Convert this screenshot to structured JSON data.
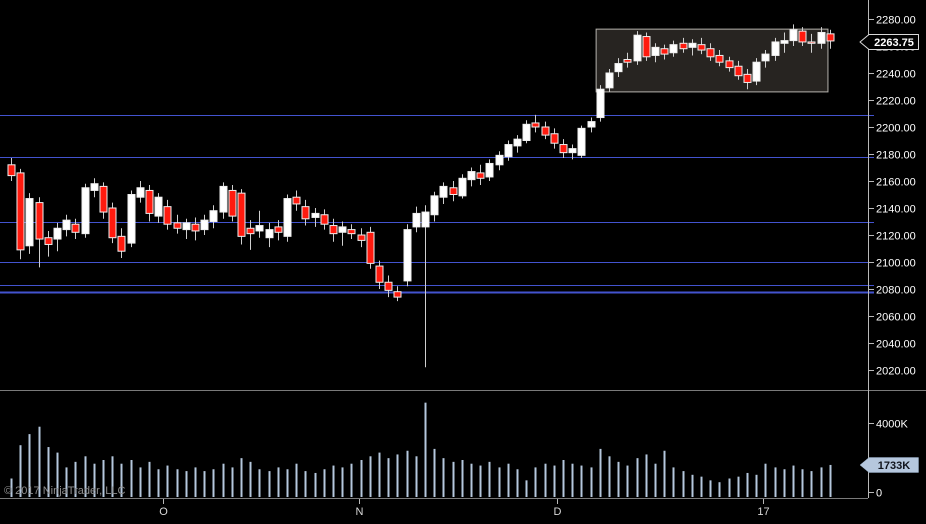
{
  "footer": {
    "copyright": "© 2017 NinjaTrader, LLC"
  },
  "price_axis": {
    "min": 2020,
    "max": 2280,
    "step": 20,
    "last_price": 2263.75,
    "last_price_label": "2263.75",
    "ticks": [
      {
        "value": 2280,
        "label": "2280.00"
      },
      {
        "value": 2260,
        "label": "2260.00"
      },
      {
        "value": 2240,
        "label": "2240.00"
      },
      {
        "value": 2220,
        "label": "2220.00"
      },
      {
        "value": 2200,
        "label": "2200.00"
      },
      {
        "value": 2180,
        "label": "2180.00"
      },
      {
        "value": 2160,
        "label": "2160.00"
      },
      {
        "value": 2140,
        "label": "2140.00"
      },
      {
        "value": 2120,
        "label": "2120.00"
      },
      {
        "value": 2100,
        "label": "2100.00"
      },
      {
        "value": 2080,
        "label": "2080.00"
      },
      {
        "value": 2060,
        "label": "2060.00"
      },
      {
        "value": 2040,
        "label": "2040.00"
      },
      {
        "value": 2020,
        "label": "2020.00"
      }
    ]
  },
  "volume_axis": {
    "unit": "K",
    "last_volume": 1733,
    "last_volume_label": "1733K",
    "ticks": [
      {
        "value": 4000,
        "label": "4000K"
      },
      {
        "value": 0,
        "label": "0"
      }
    ]
  },
  "time_axis": {
    "ticks": [
      {
        "label": "O",
        "index": 16.5
      },
      {
        "label": "N",
        "index": 37.8
      },
      {
        "label": "D",
        "index": 59.4
      },
      {
        "label": "17",
        "index": 81.7
      }
    ]
  },
  "colors": {
    "background": "#000000",
    "up_candle": "#ffffff",
    "down_candle": "#ff1a0e",
    "candle_outline": "#efefef",
    "wick": "#cfcfcf",
    "hline": "#4353cf",
    "volume_bar": "#b5c7dd",
    "axis_line": "#b9b9b9",
    "separator": "#7a7a7a",
    "tick_text": "#ffffff",
    "month_text": "#d9d9d9",
    "box_fill": "rgba(176,166,152,0.22)",
    "box_border": "#b5b2ad",
    "price_badge_bg": "#000000",
    "price_badge_border": "#d9d9d9",
    "price_badge_text": "#ffffff",
    "volume_badge_bg": "#b5c7dd",
    "volume_badge_text": "#10141c"
  },
  "chart_data": {
    "type": "candlestick",
    "panes": [
      "price",
      "volume"
    ],
    "grid": false,
    "legend": "none",
    "price_range": [
      2020,
      2280
    ],
    "volume_range_k": [
      0,
      4000
    ],
    "candles": [
      [
        2172,
        2177,
        2160,
        2164
      ],
      [
        2166,
        2169,
        2102,
        2109
      ],
      [
        2112,
        2151,
        2106,
        2147
      ],
      [
        2144,
        2148,
        2096,
        2117
      ],
      [
        2118,
        2123,
        2104,
        2113
      ],
      [
        2117,
        2129,
        2108,
        2125
      ],
      [
        2124,
        2135,
        2119,
        2131
      ],
      [
        2128,
        2132,
        2117,
        2122
      ],
      [
        2121,
        2158,
        2118,
        2155
      ],
      [
        2153,
        2162,
        2148,
        2158
      ],
      [
        2156,
        2159,
        2132,
        2137
      ],
      [
        2140,
        2144,
        2114,
        2118
      ],
      [
        2119,
        2125,
        2103,
        2108
      ],
      [
        2114,
        2153,
        2111,
        2150
      ],
      [
        2148,
        2160,
        2144,
        2155
      ],
      [
        2153,
        2157,
        2130,
        2136
      ],
      [
        2134,
        2151,
        2129,
        2148
      ],
      [
        2141,
        2146,
        2124,
        2128
      ],
      [
        2129,
        2135,
        2121,
        2125
      ],
      [
        2124,
        2132,
        2117,
        2129
      ],
      [
        2128,
        2133,
        2116,
        2123
      ],
      [
        2124,
        2135,
        2120,
        2131
      ],
      [
        2130,
        2142,
        2125,
        2138
      ],
      [
        2137,
        2159,
        2132,
        2156
      ],
      [
        2153,
        2157,
        2130,
        2134
      ],
      [
        2151,
        2154,
        2113,
        2119
      ],
      [
        2125,
        2131,
        2109,
        2121
      ],
      [
        2123,
        2138,
        2118,
        2127
      ],
      [
        2118,
        2129,
        2111,
        2124
      ],
      [
        2126,
        2131,
        2116,
        2122
      ],
      [
        2119,
        2150,
        2115,
        2147
      ],
      [
        2148,
        2153,
        2138,
        2143
      ],
      [
        2141,
        2146,
        2127,
        2132
      ],
      [
        2133,
        2140,
        2126,
        2136
      ],
      [
        2135,
        2139,
        2124,
        2128
      ],
      [
        2127,
        2132,
        2115,
        2121
      ],
      [
        2122,
        2130,
        2112,
        2126
      ],
      [
        2124,
        2128,
        2117,
        2121
      ],
      [
        2120,
        2125,
        2111,
        2116
      ],
      [
        2122,
        2126,
        2095,
        2099
      ],
      [
        2097,
        2101,
        2080,
        2085
      ],
      [
        2085,
        2090,
        2074,
        2079
      ],
      [
        2078,
        2082,
        2071,
        2074
      ],
      [
        2086,
        2128,
        2082,
        2124
      ],
      [
        2126,
        2141,
        2122,
        2136
      ],
      [
        2126,
        2142,
        2022,
        2137
      ],
      [
        2135,
        2152,
        2130,
        2149
      ],
      [
        2148,
        2159,
        2143,
        2156
      ],
      [
        2155,
        2160,
        2145,
        2150
      ],
      [
        2149,
        2165,
        2147,
        2162
      ],
      [
        2161,
        2170,
        2156,
        2167
      ],
      [
        2166,
        2172,
        2157,
        2162
      ],
      [
        2163,
        2176,
        2160,
        2173
      ],
      [
        2172,
        2182,
        2168,
        2179
      ],
      [
        2178,
        2190,
        2175,
        2187
      ],
      [
        2186,
        2194,
        2181,
        2191
      ],
      [
        2190,
        2205,
        2188,
        2202
      ],
      [
        2203,
        2209,
        2196,
        2200
      ],
      [
        2200,
        2204,
        2191,
        2194
      ],
      [
        2195,
        2199,
        2184,
        2188
      ],
      [
        2187,
        2191,
        2177,
        2181
      ],
      [
        2181,
        2187,
        2176,
        2184
      ],
      [
        2179,
        2201,
        2177,
        2199
      ],
      [
        2200,
        2207,
        2196,
        2204
      ],
      [
        2207,
        2231,
        2204,
        2228
      ],
      [
        2229,
        2243,
        2226,
        2240
      ],
      [
        2241,
        2251,
        2237,
        2247
      ],
      [
        2250,
        2255,
        2244,
        2248
      ],
      [
        2249,
        2271,
        2246,
        2268
      ],
      [
        2267,
        2270,
        2249,
        2252
      ],
      [
        2253,
        2262,
        2248,
        2259
      ],
      [
        2258,
        2261,
        2250,
        2254
      ],
      [
        2255,
        2264,
        2252,
        2261
      ],
      [
        2262,
        2266,
        2255,
        2258
      ],
      [
        2259,
        2265,
        2253,
        2262
      ],
      [
        2261,
        2266,
        2254,
        2257
      ],
      [
        2258,
        2262,
        2249,
        2252
      ],
      [
        2253,
        2257,
        2245,
        2248
      ],
      [
        2249,
        2252,
        2241,
        2244
      ],
      [
        2245,
        2249,
        2235,
        2238
      ],
      [
        2239,
        2243,
        2228,
        2233
      ],
      [
        2234,
        2251,
        2231,
        2248
      ],
      [
        2249,
        2257,
        2244,
        2254
      ],
      [
        2253,
        2266,
        2249,
        2263
      ],
      [
        2262,
        2270,
        2255,
        2264
      ],
      [
        2264,
        2276,
        2260,
        2272
      ],
      [
        2271,
        2274,
        2260,
        2263
      ],
      [
        2263,
        2269,
        2255,
        2262
      ],
      [
        2262,
        2274,
        2258,
        2270
      ],
      [
        2269,
        2272,
        2258,
        2263.75
      ]
    ],
    "volumes_k": [
      1000,
      2800,
      3400,
      3800,
      2700,
      2400,
      1600,
      1900,
      2200,
      1800,
      2000,
      2200,
      1800,
      2000,
      1600,
      1900,
      1500,
      1700,
      1500,
      1400,
      1600,
      1400,
      1500,
      1800,
      1600,
      2100,
      1900,
      1500,
      1400,
      1600,
      1500,
      1800,
      1400,
      1300,
      1500,
      1700,
      1600,
      1800,
      2000,
      2200,
      2400,
      2100,
      2300,
      2500,
      2200,
      5100,
      2600,
      2100,
      1900,
      2000,
      1800,
      1700,
      1900,
      1600,
      1800,
      1500,
      900,
      1600,
      1800,
      1700,
      2000,
      1800,
      1700,
      1600,
      2600,
      2200,
      1900,
      1700,
      2100,
      2300,
      1800,
      2500,
      1600,
      1400,
      1200,
      1100,
      900,
      800,
      1000,
      1100,
      1300,
      1200,
      1800,
      1600,
      1500,
      1700,
      1500,
      1400,
      1600,
      1733
    ],
    "support_resistance_lines": [
      {
        "price": 2209,
        "width": 1
      },
      {
        "price": 2178,
        "width": 1
      },
      {
        "price": 2130,
        "width": 1
      },
      {
        "price": 2100,
        "width": 1
      },
      {
        "price": 2083,
        "width": 1
      },
      {
        "price": 2078,
        "width": 2
      }
    ],
    "highlight_box": {
      "from_index": 63.6,
      "to_index": 88.8,
      "price_top": 2272.5,
      "price_bottom": 2226
    }
  }
}
